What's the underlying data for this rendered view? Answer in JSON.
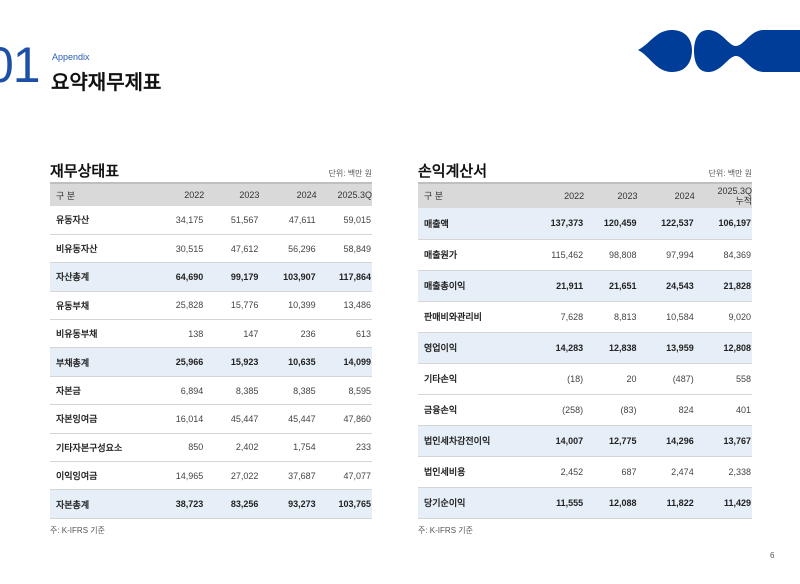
{
  "header": {
    "section_number": "01",
    "section_label": "Appendix",
    "title": "요약재무제표",
    "brand_color": "#003d99"
  },
  "balance_sheet": {
    "title": "재무상태표",
    "unit": "단위: 백만 원",
    "columns": [
      "구 분",
      "2022",
      "2023",
      "2024",
      "2025.3Q"
    ],
    "rows": [
      {
        "label": "유동자산",
        "values": [
          "34,175",
          "51,567",
          "47,611",
          "59,015"
        ],
        "total": false
      },
      {
        "label": "비유동자산",
        "values": [
          "30,515",
          "47,612",
          "56,296",
          "58,849"
        ],
        "total": false
      },
      {
        "label": "자산총계",
        "values": [
          "64,690",
          "99,179",
          "103,907",
          "117,864"
        ],
        "total": true
      },
      {
        "label": "유동부채",
        "values": [
          "25,828",
          "15,776",
          "10,399",
          "13,486"
        ],
        "total": false
      },
      {
        "label": "비유동부채",
        "values": [
          "138",
          "147",
          "236",
          "613"
        ],
        "total": false
      },
      {
        "label": "부채총계",
        "values": [
          "25,966",
          "15,923",
          "10,635",
          "14,099"
        ],
        "total": true
      },
      {
        "label": "자본금",
        "values": [
          "6,894",
          "8,385",
          "8,385",
          "8,595"
        ],
        "total": false
      },
      {
        "label": "자본잉여금",
        "values": [
          "16,014",
          "45,447",
          "45,447",
          "47,860"
        ],
        "total": false
      },
      {
        "label": "기타자본구성요소",
        "values": [
          "850",
          "2,402",
          "1,754",
          "233"
        ],
        "total": false
      },
      {
        "label": "이익잉여금",
        "values": [
          "14,965",
          "27,022",
          "37,687",
          "47,077"
        ],
        "total": false
      },
      {
        "label": "자본총계",
        "values": [
          "38,723",
          "83,256",
          "93,273",
          "103,765"
        ],
        "total": true
      }
    ],
    "note": "주: K-IFRS 기준"
  },
  "income_statement": {
    "title": "손익계산서",
    "unit": "단위: 백만 원",
    "columns": [
      "구 분",
      "2022",
      "2023",
      "2024",
      "2025.3Q\n누적"
    ],
    "rows": [
      {
        "label": "매출액",
        "values": [
          "137,373",
          "120,459",
          "122,537",
          "106,197"
        ],
        "total": true
      },
      {
        "label": "매출원가",
        "values": [
          "115,462",
          "98,808",
          "97,994",
          "84,369"
        ],
        "total": false
      },
      {
        "label": "매출총이익",
        "values": [
          "21,911",
          "21,651",
          "24,543",
          "21,828"
        ],
        "total": true
      },
      {
        "label": "판매비와관리비",
        "values": [
          "7,628",
          "8,813",
          "10,584",
          "9,020"
        ],
        "total": false
      },
      {
        "label": "영업이익",
        "values": [
          "14,283",
          "12,838",
          "13,959",
          "12,808"
        ],
        "total": true
      },
      {
        "label": "기타손익",
        "values": [
          "(18)",
          "20",
          "(487)",
          "558"
        ],
        "total": false
      },
      {
        "label": "금융손익",
        "values": [
          "(258)",
          "(83)",
          "824",
          "401"
        ],
        "total": false
      },
      {
        "label": "법인세차감전이익",
        "values": [
          "14,007",
          "12,775",
          "14,296",
          "13,767"
        ],
        "total": true
      },
      {
        "label": "법인세비용",
        "values": [
          "2,452",
          "687",
          "2,474",
          "2,338"
        ],
        "total": false
      },
      {
        "label": "당기순이익",
        "values": [
          "11,555",
          "12,088",
          "11,822",
          "11,429"
        ],
        "total": true
      }
    ],
    "note": "주: K-IFRS 기준"
  },
  "page_number": "6"
}
